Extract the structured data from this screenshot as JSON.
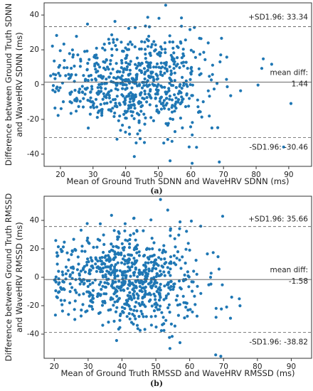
{
  "panels_note": "",
  "chart_data": [
    {
      "type": "scatter",
      "panel_label": "(a)",
      "title": "",
      "xlabel": "Mean of Ground Truth SDNN and WaveHRV SDNN (ms)",
      "ylabel": [
        "Difference between Ground Truth SDNN",
        "and WaveHRV SDNN (ms)"
      ],
      "xlim": [
        15,
        97
      ],
      "ylim": [
        -47,
        47
      ],
      "xticks": [
        20,
        30,
        40,
        50,
        60,
        70,
        80,
        90
      ],
      "yticks": [
        -40,
        -20,
        0,
        20,
        40
      ],
      "point_color": "#1f77b4",
      "mean_diff": 1.44,
      "upper_loa": 33.34,
      "lower_loa": -30.46,
      "labels": {
        "upper": "+SD1.96: 33.34",
        "mean_title": "mean diff:",
        "mean_value": "1.44",
        "lower": "-SD1.96: -30.46"
      },
      "cluster": {
        "mean_x": 44,
        "sd_x": 12.5,
        "x_min": 17,
        "x_max": 93,
        "sd_y": 16,
        "count": 700,
        "seed": 11
      },
      "grid": false,
      "legend": "none"
    },
    {
      "type": "scatter",
      "panel_label": "(b)",
      "title": "",
      "xlabel": "Mean of Ground Truth RMSSD and WaveHRV RMSSD (ms)",
      "ylabel": [
        "Difference between Ground Truth RMSSD",
        "and WaveHRV RMSSD (ms)"
      ],
      "xlim": [
        17,
        96
      ],
      "ylim": [
        -57,
        57
      ],
      "xticks": [
        20,
        30,
        40,
        50,
        60,
        70,
        80,
        90
      ],
      "yticks": [
        -40,
        -20,
        0,
        20,
        40
      ],
      "point_color": "#1f77b4",
      "mean_diff": -1.58,
      "upper_loa": 35.66,
      "lower_loa": -38.82,
      "labels": {
        "upper": "+SD1.96: 35.66",
        "mean_title": "mean diff:",
        "mean_value": "-1.58",
        "lower": "-SD1.96: -38.82"
      },
      "cluster": {
        "mean_x": 42,
        "sd_x": 11.5,
        "x_min": 20,
        "x_max": 93,
        "sd_y": 19,
        "count": 750,
        "seed": 29
      },
      "grid": false,
      "legend": "none"
    }
  ]
}
